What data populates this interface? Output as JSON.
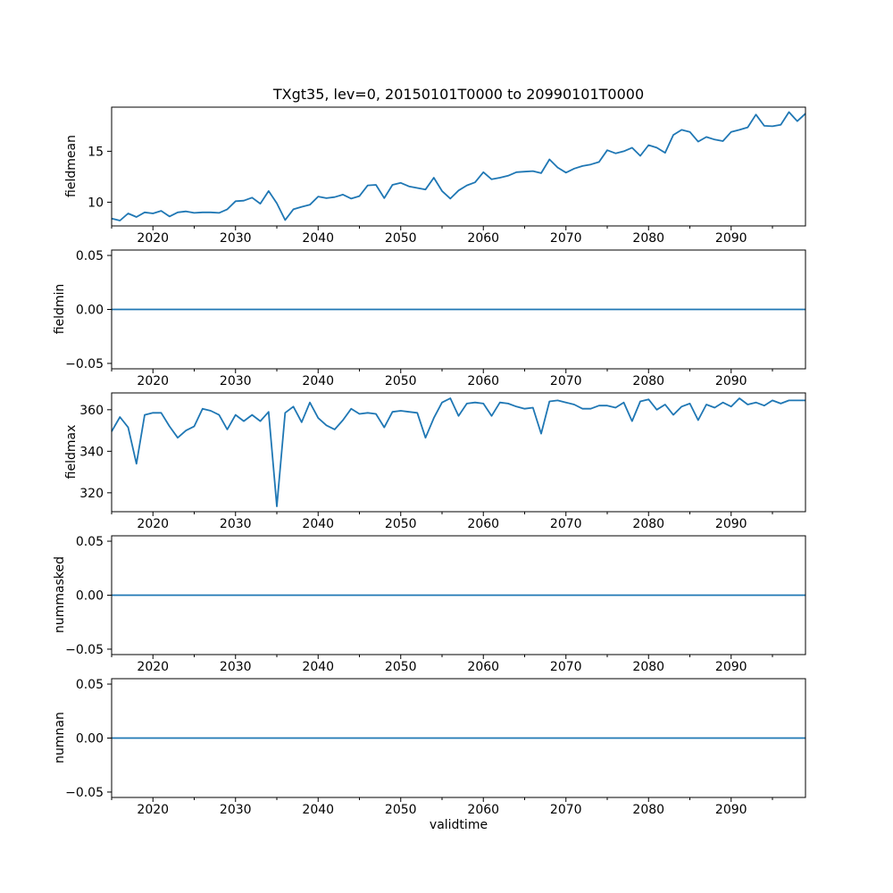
{
  "chart_data": {
    "type": "line",
    "title": "TXgt35, lev=0, 20150101T0000 to 20990101T0000",
    "xlabel": "validtime",
    "grid": false,
    "legend": false,
    "line_color": "#1f77b4",
    "x": {
      "start": 2015,
      "end": 2099,
      "step": 1
    },
    "x_major_ticks": [
      {
        "v": 2020,
        "label": "2020"
      },
      {
        "v": 2030,
        "label": "2030"
      },
      {
        "v": 2040,
        "label": "2040"
      },
      {
        "v": 2050,
        "label": "2050"
      },
      {
        "v": 2060,
        "label": "2060"
      },
      {
        "v": 2070,
        "label": "2070"
      },
      {
        "v": 2080,
        "label": "2080"
      },
      {
        "v": 2090,
        "label": "2090"
      }
    ],
    "x_minor_ticks": [
      2015,
      2025,
      2035,
      2045,
      2055,
      2065,
      2075,
      2085,
      2095
    ],
    "plots": [
      {
        "ylabel": "fieldmean",
        "ylim": [
          7.67,
          19.33
        ],
        "yticks": [
          {
            "v": 10,
            "label": "10"
          },
          {
            "v": 15,
            "label": "15"
          }
        ],
        "values": [
          8.4,
          8.2,
          8.9,
          8.55,
          9.0,
          8.9,
          9.15,
          8.6,
          9.0,
          9.1,
          8.95,
          9.0,
          9.0,
          8.95,
          9.3,
          10.1,
          10.15,
          10.45,
          9.85,
          11.1,
          9.9,
          8.25,
          9.3,
          9.55,
          9.75,
          10.55,
          10.4,
          10.5,
          10.75,
          10.35,
          10.6,
          11.65,
          11.7,
          10.4,
          11.7,
          11.9,
          11.55,
          11.4,
          11.25,
          12.4,
          11.1,
          10.35,
          11.15,
          11.65,
          11.95,
          12.95,
          12.25,
          12.4,
          12.6,
          12.95,
          13.0,
          13.05,
          12.85,
          14.2,
          13.4,
          12.9,
          13.3,
          13.55,
          13.7,
          13.95,
          15.1,
          14.8,
          15.0,
          15.35,
          14.55,
          15.6,
          15.35,
          14.85,
          16.6,
          17.1,
          16.9,
          15.95,
          16.4,
          16.15,
          16.0,
          16.9,
          17.1,
          17.35,
          18.6,
          17.5,
          17.45,
          17.6,
          18.85,
          17.95,
          18.7
        ]
      },
      {
        "ylabel": "fieldmin",
        "ylim": [
          -0.055,
          0.055
        ],
        "yticks": [
          {
            "v": -0.05,
            "label": "−0.05"
          },
          {
            "v": 0,
            "label": "0.00"
          },
          {
            "v": 0.05,
            "label": "0.05"
          }
        ],
        "values_constant": 0.0
      },
      {
        "ylabel": "fieldmax",
        "ylim": [
          310.9,
          368.1
        ],
        "yticks": [
          {
            "v": 320,
            "label": "320"
          },
          {
            "v": 340,
            "label": "340"
          },
          {
            "v": 360,
            "label": "360"
          }
        ],
        "values": [
          349.5,
          356.5,
          351.5,
          334,
          357.5,
          358.5,
          358.5,
          352,
          346.5,
          350,
          352,
          360.5,
          359.5,
          357.5,
          350.5,
          357.5,
          354.5,
          357.5,
          354.5,
          359,
          313.5,
          358.5,
          361.5,
          354,
          363.5,
          356,
          352.5,
          350.5,
          355,
          360.5,
          358,
          358.5,
          358,
          351.5,
          359,
          359.5,
          359,
          358.5,
          346.5,
          356,
          363.5,
          365.5,
          357,
          363,
          363.5,
          363,
          357,
          363.5,
          363,
          361.5,
          360.5,
          361,
          348.5,
          364,
          364.5,
          363.5,
          362.5,
          360.5,
          360.5,
          362,
          362,
          361,
          363.5,
          354.5,
          364,
          365,
          360,
          362.5,
          357.5,
          361.5,
          363,
          355,
          362.5,
          361,
          363.5,
          361.5,
          365.5,
          362.5,
          363.5,
          362,
          364.5,
          363,
          364.5,
          364.5,
          364.5
        ]
      },
      {
        "ylabel": "nummasked",
        "ylim": [
          -0.055,
          0.055
        ],
        "yticks": [
          {
            "v": -0.05,
            "label": "−0.05"
          },
          {
            "v": 0,
            "label": "0.00"
          },
          {
            "v": 0.05,
            "label": "0.05"
          }
        ],
        "values_constant": 0.0
      },
      {
        "ylabel": "numnan",
        "ylim": [
          -0.055,
          0.055
        ],
        "yticks": [
          {
            "v": -0.05,
            "label": "−0.05"
          },
          {
            "v": 0,
            "label": "0.00"
          },
          {
            "v": 0.05,
            "label": "0.05"
          }
        ],
        "values_constant": 0.0
      }
    ]
  }
}
